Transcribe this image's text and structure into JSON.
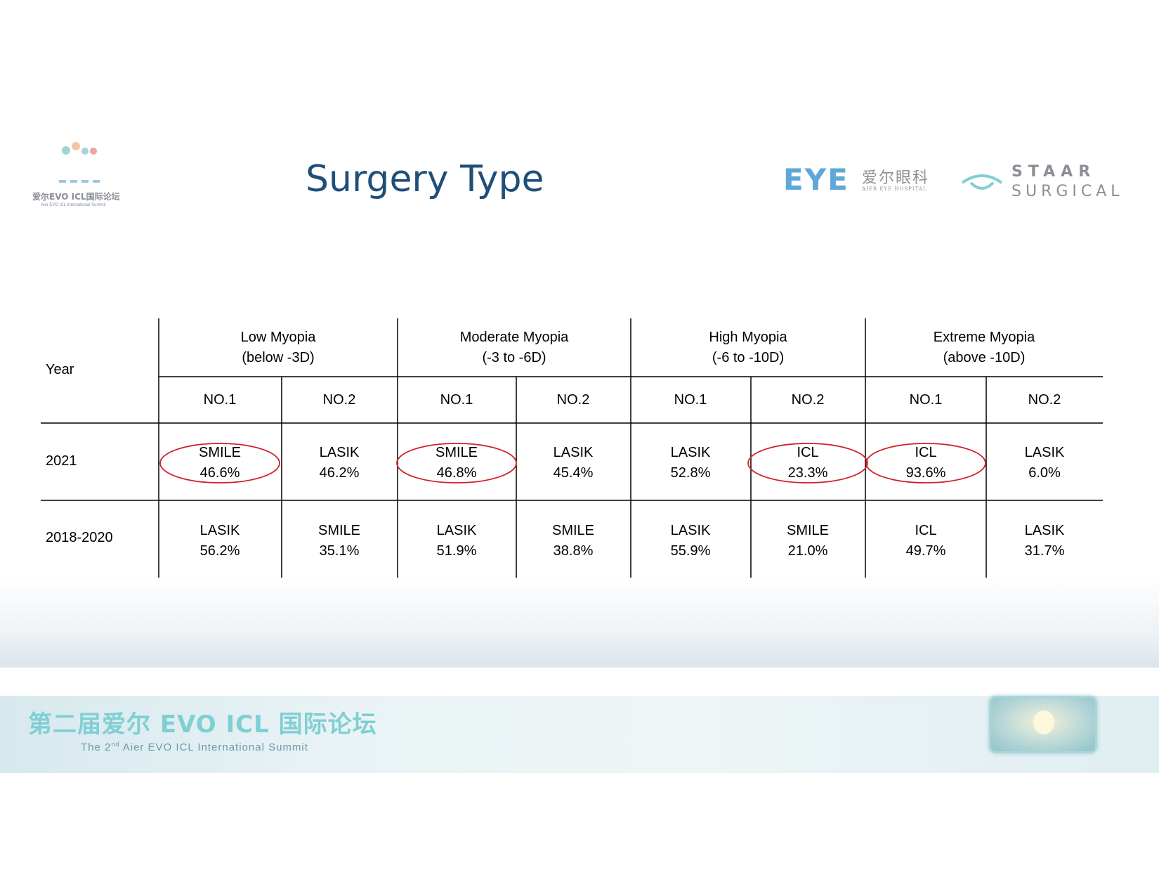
{
  "header": {
    "title": "Surgery Type",
    "summit_logo_cn": "爱尔EVO ICL国际论坛",
    "summit_logo_en": "Aier EVO ICL International Summit",
    "aier_logo_mark": "EYE",
    "aier_logo_cn": "爱尔眼科",
    "aier_logo_en": "AIER EYE HOSPITAL",
    "staar_logo_word": "STAAR",
    "staar_logo_sub": "SURGICAL"
  },
  "table": {
    "year_header": "Year",
    "groups": [
      {
        "name": "Low Myopia",
        "range": "(below -3D)"
      },
      {
        "name": "Moderate Myopia",
        "range": "(-3 to -6D)"
      },
      {
        "name": "High Myopia",
        "range": "(-6 to -10D)"
      },
      {
        "name": "Extreme Myopia",
        "range": "(above -10D)"
      }
    ],
    "subheaders": [
      "NO.1",
      "NO.2",
      "NO.1",
      "NO.2",
      "NO.1",
      "NO.2",
      "NO.1",
      "NO.2"
    ],
    "rows": [
      {
        "year": "2021",
        "cells": [
          {
            "type": "SMILE",
            "pct": "46.6%",
            "circled": true
          },
          {
            "type": "LASIK",
            "pct": "46.2%",
            "circled": false
          },
          {
            "type": "SMILE",
            "pct": "46.8%",
            "circled": true
          },
          {
            "type": "LASIK",
            "pct": "45.4%",
            "circled": false
          },
          {
            "type": "LASIK",
            "pct": "52.8%",
            "circled": false
          },
          {
            "type": "ICL",
            "pct": "23.3%",
            "circled": true
          },
          {
            "type": "ICL",
            "pct": "93.6%",
            "circled": true
          },
          {
            "type": "LASIK",
            "pct": "6.0%",
            "circled": false
          }
        ]
      },
      {
        "year": "2018-2020",
        "cells": [
          {
            "type": "LASIK",
            "pct": "56.2%",
            "circled": false
          },
          {
            "type": "SMILE",
            "pct": "35.1%",
            "circled": false
          },
          {
            "type": "LASIK",
            "pct": "51.9%",
            "circled": false
          },
          {
            "type": "SMILE",
            "pct": "38.8%",
            "circled": false
          },
          {
            "type": "LASIK",
            "pct": "55.9%",
            "circled": false
          },
          {
            "type": "SMILE",
            "pct": "21.0%",
            "circled": false
          },
          {
            "type": "ICL",
            "pct": "49.7%",
            "circled": false
          },
          {
            "type": "LASIK",
            "pct": "31.7%",
            "circled": false
          }
        ]
      }
    ]
  },
  "footer": {
    "title_cn": "第二届爱尔 EVO ICL 国际论坛",
    "subtitle_prefix": "The 2",
    "subtitle_sup": "nd",
    "subtitle_rest": " Aier EVO ICL International Summit"
  },
  "colors": {
    "title": "#1f4e79",
    "highlight_circle": "#d0202a",
    "footer_text": "#7fcfd3"
  }
}
